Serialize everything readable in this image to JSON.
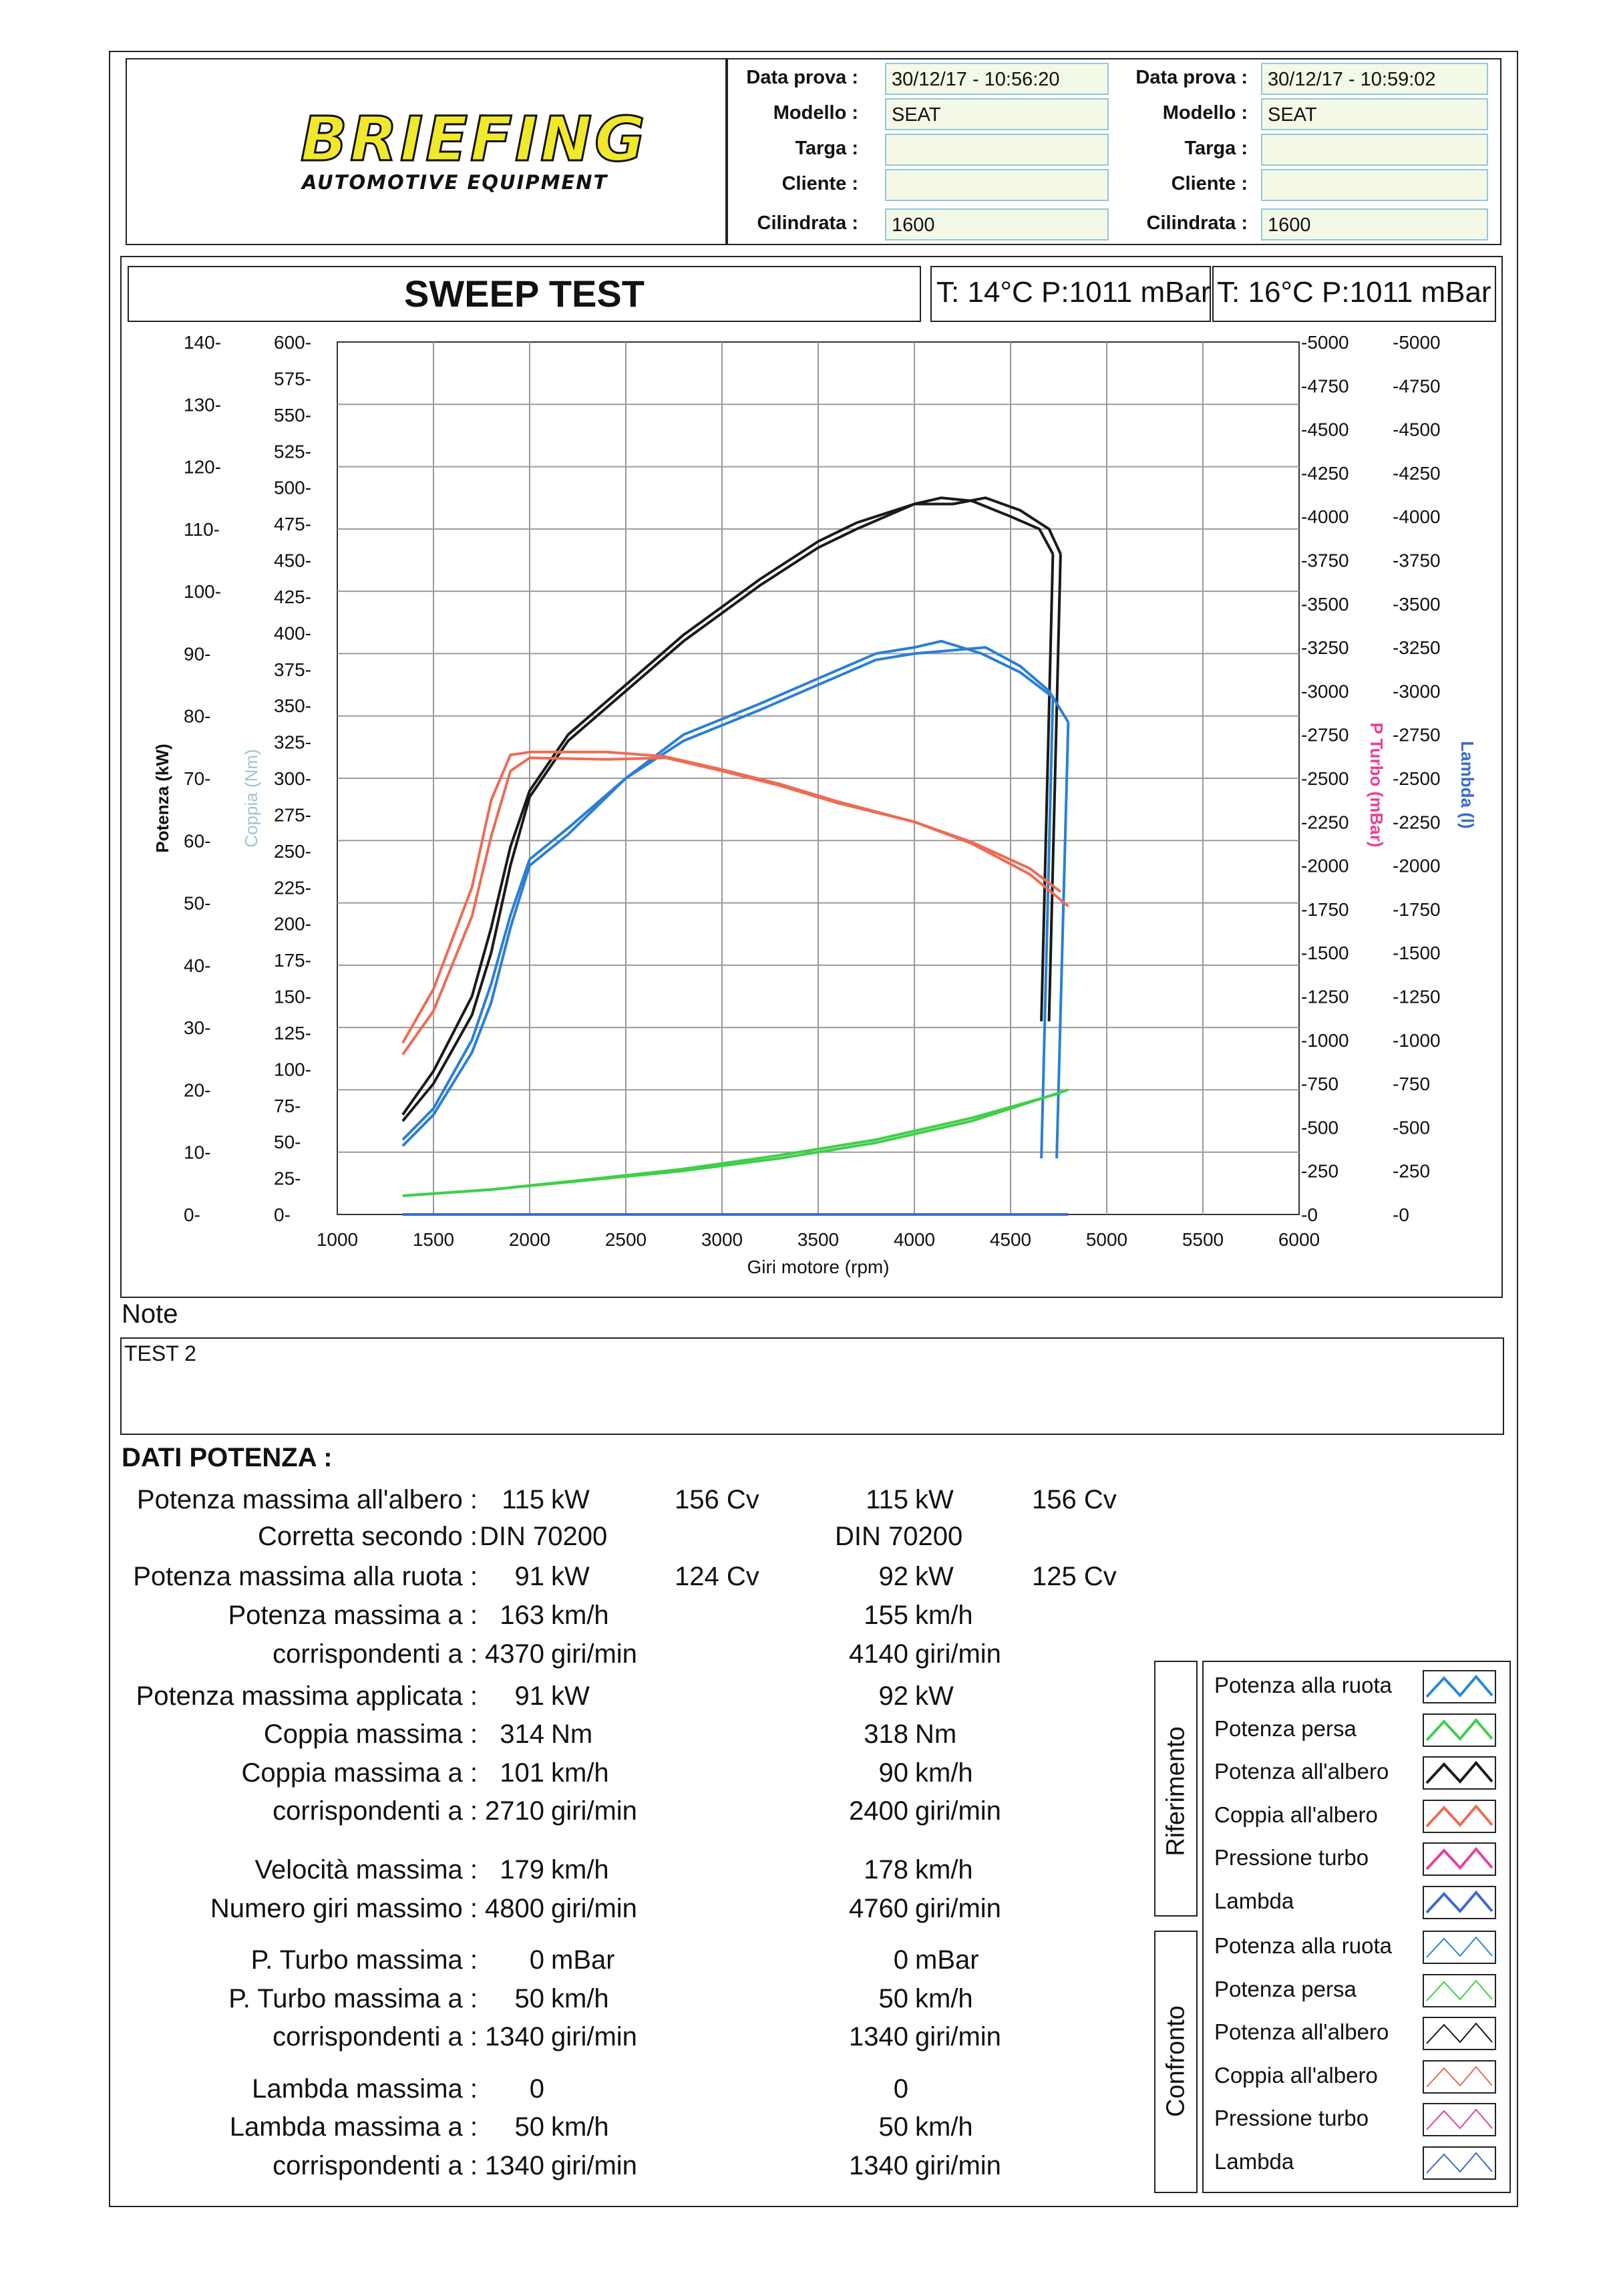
{
  "header": {
    "logo_main": "BRIEFING",
    "logo_sub": "AUTOMOTIVE EQUIPMENT",
    "labels": {
      "data": "Data prova :",
      "modello": "Modello :",
      "targa": "Targa :",
      "cliente": "Cliente :",
      "cilindrata": "Cilindrata :"
    },
    "test1": {
      "data": "30/12/17 - 10:56:20",
      "modello": "SEAT",
      "targa": "",
      "cliente": "",
      "cilindrata": "1600"
    },
    "test2": {
      "data": "30/12/17 - 10:59:02",
      "modello": "SEAT",
      "targa": "",
      "cliente": "",
      "cilindrata": "1600"
    }
  },
  "sweep_title": "SWEEP TEST",
  "conditions": [
    {
      "t_label": "T:",
      "t": "14°C",
      "p_label": "P:",
      "p": "1011",
      "unit": "mBar"
    },
    {
      "t_label": "T:",
      "t": "16°C",
      "p_label": "P:",
      "p": "1011",
      "unit": "mBar"
    }
  ],
  "chart_data": {
    "type": "line",
    "title": "",
    "xlabel": "Giri motore (rpm)",
    "x_ticks": [
      "1000",
      "1500",
      "2000",
      "2500",
      "3000",
      "3500",
      "4000",
      "4500",
      "5000",
      "5500",
      "6000"
    ],
    "xlim": [
      1000,
      6000
    ],
    "ylabels": {
      "power": "Potenza (kW)",
      "torque": "Coppia (Nm)",
      "turbo": "P Turbo (mBar)",
      "lambda": "Lambda (l)"
    },
    "axis_power_ticks": [
      "140-",
      "130-",
      "120-",
      "110-",
      "100-",
      "90-",
      "80-",
      "70-",
      "60-",
      "50-",
      "40-",
      "30-",
      "20-",
      "10-",
      "0-"
    ],
    "axis_torque_ticks": [
      "600-",
      "575-",
      "550-",
      "525-",
      "500-",
      "475-",
      "450-",
      "425-",
      "400-",
      "375-",
      "350-",
      "325-",
      "300-",
      "275-",
      "250-",
      "225-",
      "200-",
      "175-",
      "150-",
      "125-",
      "100-",
      "75-",
      "50-",
      "25-",
      "0-"
    ],
    "axis_turbo_ticks": [
      "-5000",
      "-4750",
      "-4500",
      "-4250",
      "-4000",
      "-3750",
      "-3500",
      "-3250",
      "-3000",
      "-2750",
      "-2500",
      "-2250",
      "-2000",
      "-1750",
      "-1500",
      "-1250",
      "-1000",
      "-750",
      "-500",
      "-250",
      "-0"
    ],
    "axis_lambda_ticks": [
      "-5000",
      "-4750",
      "-4500",
      "-4250",
      "-4000",
      "-3750",
      "-3500",
      "-3250",
      "-3000",
      "-2750",
      "-2500",
      "-2250",
      "-2000",
      "-1750",
      "-1500",
      "-1250",
      "-1000",
      "-750",
      "-500",
      "-250",
      "-0"
    ],
    "axis_ranges": {
      "power_kw": [
        0,
        140
      ],
      "torque_nm": [
        0,
        600
      ],
      "turbo_mbar": [
        0,
        5000
      ],
      "lambda": [
        0,
        5000
      ]
    },
    "grid": true,
    "series": [
      {
        "name": "Potenza all'albero",
        "color": "#1a1a1a",
        "axis": "power",
        "test": 1,
        "points": [
          [
            1340,
            15
          ],
          [
            1500,
            21
          ],
          [
            1700,
            32
          ],
          [
            1800,
            42
          ],
          [
            1900,
            56
          ],
          [
            2000,
            67
          ],
          [
            2200,
            76
          ],
          [
            2500,
            84
          ],
          [
            2800,
            92
          ],
          [
            3200,
            101
          ],
          [
            3500,
            107
          ],
          [
            3700,
            110
          ],
          [
            4000,
            114
          ],
          [
            4200,
            114
          ],
          [
            4370,
            115
          ],
          [
            4550,
            113
          ],
          [
            4700,
            110
          ],
          [
            4760,
            106
          ]
        ]
      },
      {
        "name": "Potenza all'albero",
        "color": "#1a1a1a",
        "axis": "power",
        "test": 2,
        "points": [
          [
            1340,
            16
          ],
          [
            1500,
            23
          ],
          [
            1700,
            35
          ],
          [
            1800,
            46
          ],
          [
            1900,
            59
          ],
          [
            2000,
            68
          ],
          [
            2200,
            77
          ],
          [
            2500,
            85
          ],
          [
            2800,
            93
          ],
          [
            3200,
            102
          ],
          [
            3500,
            108
          ],
          [
            3700,
            111
          ],
          [
            4000,
            114
          ],
          [
            4140,
            115
          ],
          [
            4300,
            114.5
          ],
          [
            4500,
            112
          ],
          [
            4650,
            110
          ],
          [
            4720,
            106
          ]
        ]
      },
      {
        "name": "Potenza alla ruota",
        "color": "#2a7fd4",
        "axis": "power",
        "test": 1,
        "points": [
          [
            1340,
            11
          ],
          [
            1500,
            16
          ],
          [
            1700,
            26
          ],
          [
            1800,
            34
          ],
          [
            1900,
            46
          ],
          [
            2000,
            56
          ],
          [
            2200,
            61
          ],
          [
            2500,
            70
          ],
          [
            2800,
            76
          ],
          [
            3200,
            81
          ],
          [
            3500,
            85
          ],
          [
            3800,
            89
          ],
          [
            4000,
            90
          ],
          [
            4370,
            91
          ],
          [
            4550,
            88
          ],
          [
            4700,
            84
          ],
          [
            4800,
            79
          ]
        ]
      },
      {
        "name": "Potenza alla ruota",
        "color": "#2a7fd4",
        "axis": "power",
        "test": 2,
        "points": [
          [
            1340,
            12
          ],
          [
            1500,
            17
          ],
          [
            1700,
            28
          ],
          [
            1800,
            37
          ],
          [
            1900,
            48
          ],
          [
            2000,
            57
          ],
          [
            2200,
            62
          ],
          [
            2500,
            70
          ],
          [
            2800,
            77
          ],
          [
            3200,
            82
          ],
          [
            3500,
            86
          ],
          [
            3800,
            90
          ],
          [
            4000,
            91
          ],
          [
            4140,
            92
          ],
          [
            4350,
            90
          ],
          [
            4550,
            87
          ],
          [
            4720,
            83
          ]
        ]
      },
      {
        "name": "Coppia all'albero",
        "color": "#ee6b55",
        "axis": "torque",
        "test": 1,
        "points": [
          [
            1340,
            110
          ],
          [
            1500,
            140
          ],
          [
            1700,
            205
          ],
          [
            1800,
            260
          ],
          [
            1900,
            305
          ],
          [
            2000,
            314
          ],
          [
            2400,
            313
          ],
          [
            2710,
            314
          ],
          [
            3000,
            305
          ],
          [
            3300,
            295
          ],
          [
            3600,
            283
          ],
          [
            4000,
            270
          ],
          [
            4300,
            255
          ],
          [
            4600,
            234
          ],
          [
            4800,
            212
          ]
        ]
      },
      {
        "name": "Coppia all'albero",
        "color": "#ee6b55",
        "axis": "torque",
        "test": 2,
        "points": [
          [
            1340,
            118
          ],
          [
            1500,
            155
          ],
          [
            1700,
            225
          ],
          [
            1800,
            285
          ],
          [
            1900,
            316
          ],
          [
            2000,
            318
          ],
          [
            2400,
            318
          ],
          [
            2700,
            315
          ],
          [
            3000,
            306
          ],
          [
            3300,
            296
          ],
          [
            3600,
            284
          ],
          [
            4000,
            270
          ],
          [
            4300,
            256
          ],
          [
            4600,
            238
          ],
          [
            4760,
            222
          ]
        ]
      },
      {
        "name": "Potenza persa",
        "color": "#3fcf4a",
        "axis": "power",
        "test": 1,
        "points": [
          [
            1340,
            3
          ],
          [
            1800,
            4
          ],
          [
            2300,
            5.5
          ],
          [
            2800,
            7
          ],
          [
            3300,
            9
          ],
          [
            3800,
            11.5
          ],
          [
            4300,
            15
          ],
          [
            4800,
            20
          ]
        ]
      },
      {
        "name": "Potenza persa",
        "color": "#3fcf4a",
        "axis": "power",
        "test": 2,
        "points": [
          [
            1340,
            3
          ],
          [
            1800,
            4
          ],
          [
            2300,
            5.6
          ],
          [
            2800,
            7.3
          ],
          [
            3300,
            9.5
          ],
          [
            3800,
            12
          ],
          [
            4300,
            15.5
          ],
          [
            4760,
            19.5
          ]
        ]
      },
      {
        "name": "Pressione turbo",
        "color": "#e8409a",
        "axis": "turbo",
        "test": 1,
        "points": [
          [
            1340,
            0
          ],
          [
            4800,
            0
          ]
        ]
      },
      {
        "name": "Lambda",
        "color": "#3a6ad4",
        "axis": "lambda",
        "test": 1,
        "points": [
          [
            1340,
            0
          ],
          [
            4800,
            0
          ]
        ]
      }
    ]
  },
  "note": {
    "title": "Note",
    "text": "TEST 2"
  },
  "dati": {
    "title": "DATI POTENZA :",
    "rows": [
      {
        "label": "Potenza massima all'albero :",
        "v1": "115",
        "u1": "kW",
        "c1": "156 Cv",
        "v2": "115",
        "u2": "kW",
        "c2": "156 Cv"
      },
      {
        "label": "Corretta secondo :",
        "v1": "DIN 70200",
        "u1": "",
        "c1": "",
        "v2": "DIN 70200",
        "u2": "",
        "c2": ""
      },
      {
        "label": "Potenza massima alla ruota :",
        "v1": "91",
        "u1": "kW",
        "c1": "124 Cv",
        "v2": "92",
        "u2": "kW",
        "c2": "125 Cv"
      },
      {
        "label": "Potenza massima a :",
        "v1": "163",
        "u1": "km/h",
        "c1": "",
        "v2": "155",
        "u2": "km/h",
        "c2": ""
      },
      {
        "label": "corrispondenti a :",
        "v1": "4370",
        "u1": "giri/min",
        "c1": "",
        "v2": "4140",
        "u2": "giri/min",
        "c2": ""
      },
      {
        "label": "Potenza massima applicata :",
        "v1": "91",
        "u1": "kW",
        "c1": "",
        "v2": "92",
        "u2": "kW",
        "c2": ""
      },
      {
        "label": "Coppia massima :",
        "v1": "314",
        "u1": "Nm",
        "c1": "",
        "v2": "318",
        "u2": "Nm",
        "c2": ""
      },
      {
        "label": "Coppia massima a :",
        "v1": "101",
        "u1": "km/h",
        "c1": "",
        "v2": "90",
        "u2": "km/h",
        "c2": ""
      },
      {
        "label": "corrispondenti a :",
        "v1": "2710",
        "u1": "giri/min",
        "c1": "",
        "v2": "2400",
        "u2": "giri/min",
        "c2": ""
      },
      {
        "label": "Velocità massima :",
        "v1": "179",
        "u1": "km/h",
        "c1": "",
        "v2": "178",
        "u2": "km/h",
        "c2": ""
      },
      {
        "label": "Numero giri massimo :",
        "v1": "4800",
        "u1": "giri/min",
        "c1": "",
        "v2": "4760",
        "u2": "giri/min",
        "c2": ""
      },
      {
        "label": "P. Turbo massima :",
        "v1": "0",
        "u1": "mBar",
        "c1": "",
        "v2": "0",
        "u2": "mBar",
        "c2": ""
      },
      {
        "label": "P. Turbo massima a :",
        "v1": "50",
        "u1": "km/h",
        "c1": "",
        "v2": "50",
        "u2": "km/h",
        "c2": ""
      },
      {
        "label": "corrispondenti a :",
        "v1": "1340",
        "u1": "giri/min",
        "c1": "",
        "v2": "1340",
        "u2": "giri/min",
        "c2": ""
      },
      {
        "label": "Lambda massima :",
        "v1": "0",
        "u1": "",
        "c1": "",
        "v2": "0",
        "u2": "",
        "c2": ""
      },
      {
        "label": "Lambda massima a :",
        "v1": "50",
        "u1": "km/h",
        "c1": "",
        "v2": "50",
        "u2": "km/h",
        "c2": ""
      },
      {
        "label": "corrispondenti a :",
        "v1": "1340",
        "u1": "giri/min",
        "c1": "",
        "v2": "1340",
        "u2": "giri/min",
        "c2": ""
      }
    ]
  },
  "legend": {
    "riferimento_label": "Riferimento",
    "confronto_label": "Confronto",
    "riferimento": [
      {
        "label": "Potenza alla ruota",
        "color": "#2a88d8"
      },
      {
        "label": "Potenza persa",
        "color": "#3fcf4a"
      },
      {
        "label": "Potenza all'albero",
        "color": "#1a1a1a"
      },
      {
        "label": "Coppia all'albero",
        "color": "#ee6b55"
      },
      {
        "label": "Pressione turbo",
        "color": "#e8409a"
      },
      {
        "label": "Lambda",
        "color": "#3a6ad4"
      }
    ],
    "confronto": [
      {
        "label": "Potenza alla ruota",
        "color": "#2a88d8"
      },
      {
        "label": "Potenza persa",
        "color": "#3fcf4a"
      },
      {
        "label": "Potenza all'albero",
        "color": "#1a1a1a"
      },
      {
        "label": "Coppia all'albero",
        "color": "#ee6b55"
      },
      {
        "label": "Pressione turbo",
        "color": "#e8409a"
      },
      {
        "label": "Lambda",
        "color": "#3a6ad4"
      }
    ]
  }
}
